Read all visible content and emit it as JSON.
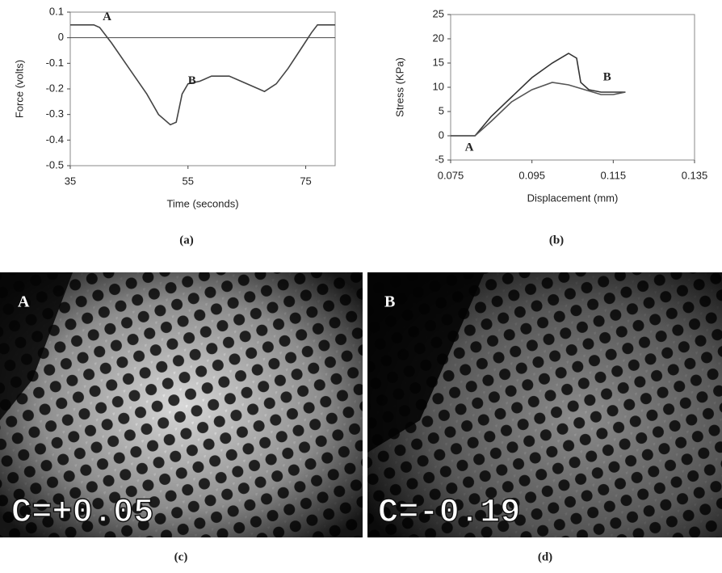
{
  "chart_data": [
    {
      "type": "line",
      "caption": "(a)",
      "xlabel": "Time (seconds)",
      "ylabel": "Force (volts)",
      "xlim": [
        35,
        80
      ],
      "xticks": [
        35,
        55,
        75
      ],
      "ylim": [
        -0.5,
        0.1
      ],
      "yticks": [
        0.1,
        0,
        -0.1,
        -0.2,
        -0.3,
        -0.4,
        -0.5
      ],
      "zero_line": true,
      "series": [
        {
          "color": "#444444",
          "x": [
            35,
            39,
            40,
            42,
            45,
            48,
            50,
            52,
            53,
            54,
            55,
            57,
            59,
            62,
            64,
            67,
            68,
            70,
            72,
            74,
            76,
            77,
            80
          ],
          "values": [
            0.05,
            0.05,
            0.04,
            -0.02,
            -0.12,
            -0.22,
            -0.3,
            -0.34,
            -0.33,
            -0.22,
            -0.18,
            -0.17,
            -0.15,
            -0.15,
            -0.17,
            -0.2,
            -0.21,
            -0.18,
            -0.12,
            -0.05,
            0.02,
            0.05,
            0.05
          ]
        }
      ],
      "annotations": [
        {
          "text": "A",
          "x": 40.5,
          "y": 0.08
        },
        {
          "text": "B",
          "x": 55,
          "y": -0.17
        }
      ]
    },
    {
      "type": "line",
      "caption": "(b)",
      "xlabel": "Displacement (mm)",
      "ylabel": "Stress (KPa)",
      "xlim": [
        0.075,
        0.135
      ],
      "xticks": [
        0.075,
        0.095,
        0.115,
        0.135
      ],
      "ylim": [
        -5,
        25
      ],
      "yticks": [
        25,
        20,
        15,
        10,
        5,
        0,
        -5
      ],
      "zero_line": false,
      "series": [
        {
          "color": "#333333",
          "x": [
            0.075,
            0.081,
            0.085,
            0.09,
            0.095,
            0.1,
            0.104,
            0.106,
            0.107,
            0.109,
            0.112,
            0.115,
            0.118
          ],
          "values": [
            0,
            0,
            4,
            8,
            12,
            15,
            17,
            16,
            11,
            9.5,
            9,
            9,
            9
          ]
        },
        {
          "color": "#555555",
          "x": [
            0.075,
            0.081,
            0.085,
            0.09,
            0.095,
            0.1,
            0.104,
            0.108,
            0.112,
            0.115,
            0.118
          ],
          "values": [
            0,
            0,
            3,
            7,
            9.5,
            11,
            10.5,
            9.5,
            8.5,
            8.5,
            9
          ]
        }
      ],
      "annotations": [
        {
          "text": "A",
          "x": 0.0785,
          "y": -2.5
        },
        {
          "text": "B",
          "x": 0.1125,
          "y": 12
        }
      ]
    }
  ],
  "panels": [
    {
      "caption": "(c)",
      "label": "A",
      "overlay": "C=+0.05"
    },
    {
      "caption": "(d)",
      "label": "B",
      "overlay": "C=-0.19"
    }
  ]
}
